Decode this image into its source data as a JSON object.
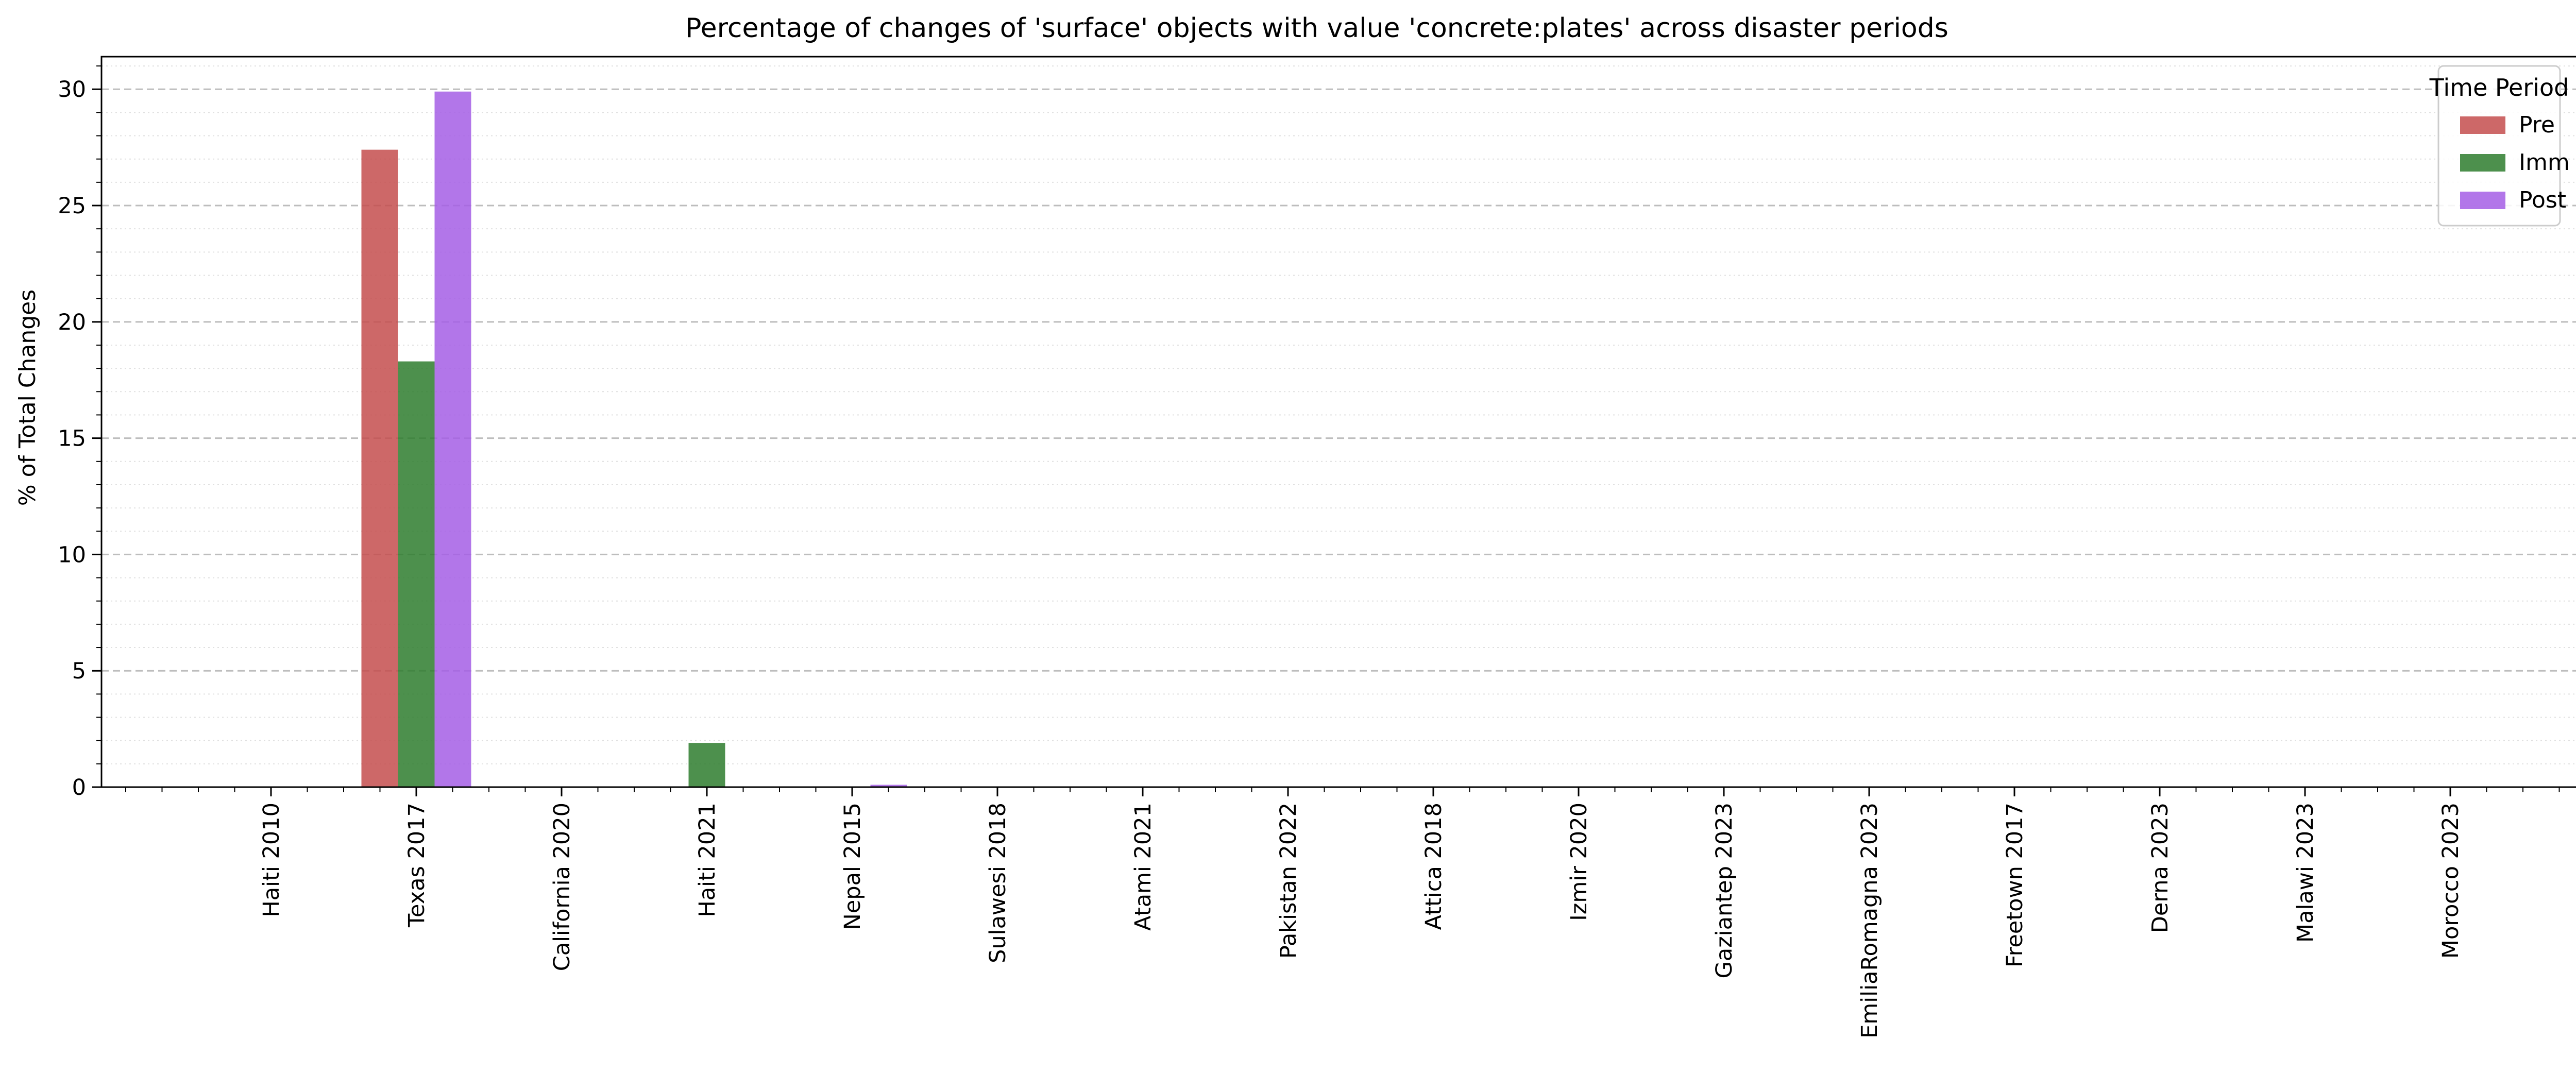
{
  "chart_data": {
    "type": "bar",
    "title": "Percentage of changes of 'surface' objects with value 'concrete:plates' across disaster periods",
    "xlabel": "",
    "ylabel": "% of Total Changes",
    "categories": [
      "Haiti 2010",
      "Texas 2017",
      "California 2020",
      "Haiti 2021",
      "Nepal 2015",
      "Sulawesi 2018",
      "Atami 2021",
      "Pakistan 2022",
      "Attica 2018",
      "Izmir 2020",
      "Gaziantep 2023",
      "EmiliaRomagna 2023",
      "Freetown 2017",
      "Derna 2023",
      "Malawi 2023",
      "Morocco 2023"
    ],
    "series": [
      {
        "name": "Pre",
        "color": "#c44e4e",
        "values": [
          0,
          27.4,
          0,
          0,
          0,
          0,
          0,
          0,
          0,
          0,
          0,
          0,
          0,
          0,
          0,
          0
        ]
      },
      {
        "name": "Imm",
        "color": "#2e7d2e",
        "values": [
          0,
          18.3,
          0,
          1.9,
          0,
          0,
          0,
          0,
          0,
          0,
          0,
          0,
          0,
          0,
          0,
          0
        ]
      },
      {
        "name": "Post",
        "color": "#a45ee5",
        "values": [
          0,
          29.9,
          0,
          0,
          0.1,
          0,
          0,
          0,
          0,
          0,
          0,
          0,
          0,
          0,
          0,
          0
        ]
      }
    ],
    "ylim": [
      0,
      31.4
    ],
    "yticks": [
      "0",
      "5",
      "10",
      "15",
      "20",
      "25",
      "30"
    ],
    "grid": true,
    "legend": {
      "title": "Time Period",
      "placement": "top-right"
    }
  }
}
